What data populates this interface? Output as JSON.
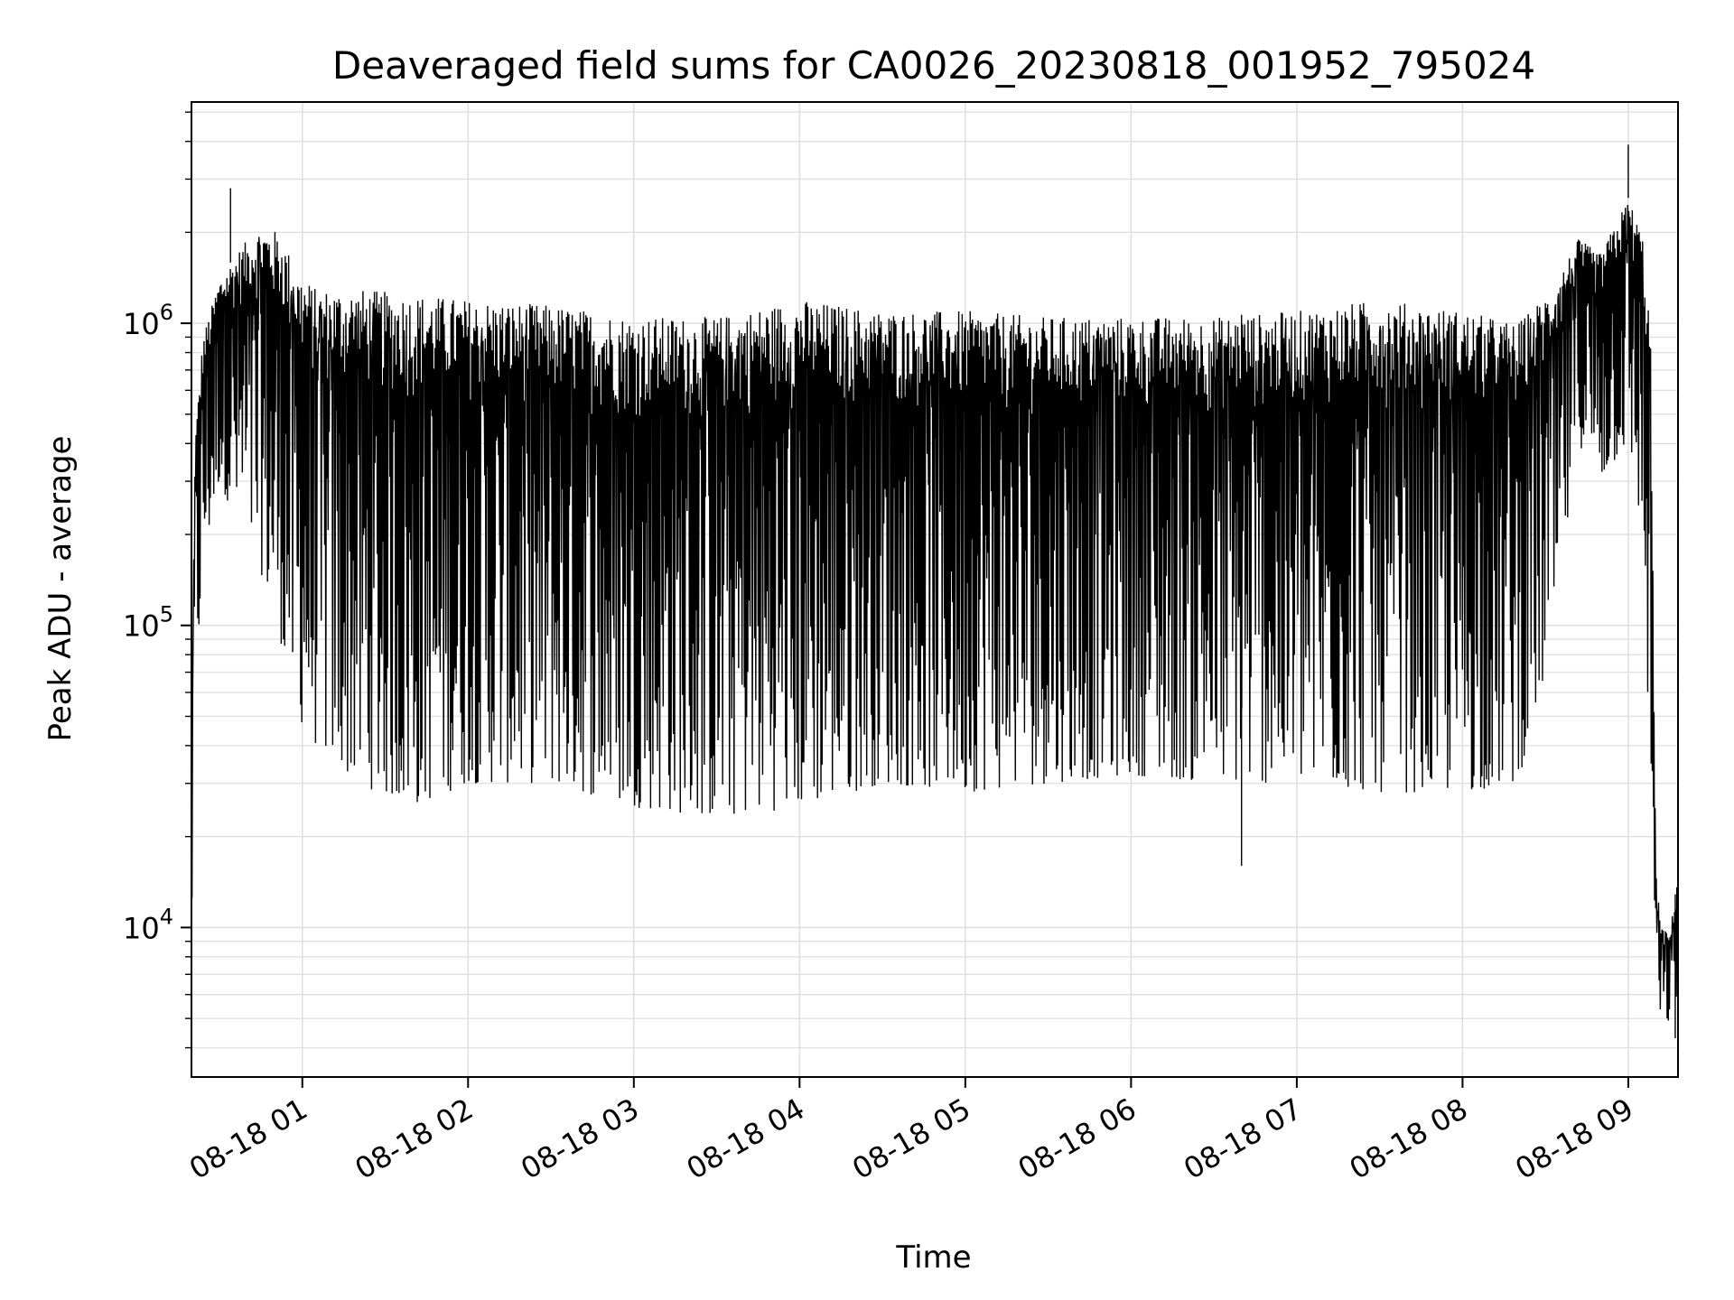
{
  "chart_data": {
    "type": "line",
    "title": "Deaveraged field sums for CA0026_20230818_001952_795024",
    "xlabel": "Time",
    "ylabel": "Peak ADU - average",
    "x_scale": "time",
    "y_scale": "log",
    "xlim": [
      "2023-08-18 00:19:52",
      "2023-08-18 09:18:00"
    ],
    "ylim": [
      3200,
      5400000
    ],
    "grid": true,
    "legend": "none",
    "line_color": "#000000",
    "x_ticks": [
      {
        "value": "2023-08-18 01:00",
        "label": "08-18 01"
      },
      {
        "value": "2023-08-18 02:00",
        "label": "08-18 02"
      },
      {
        "value": "2023-08-18 03:00",
        "label": "08-18 03"
      },
      {
        "value": "2023-08-18 04:00",
        "label": "08-18 04"
      },
      {
        "value": "2023-08-18 05:00",
        "label": "08-18 05"
      },
      {
        "value": "2023-08-18 06:00",
        "label": "08-18 06"
      },
      {
        "value": "2023-08-18 07:00",
        "label": "08-18 07"
      },
      {
        "value": "2023-08-18 08:00",
        "label": "08-18 08"
      },
      {
        "value": "2023-08-18 09:00",
        "label": "08-18 09"
      }
    ],
    "y_ticks": [
      {
        "value": 10000,
        "base": "10",
        "exp": "4"
      },
      {
        "value": 100000,
        "base": "10",
        "exp": "5"
      },
      {
        "value": 1000000,
        "base": "10",
        "exp": "6"
      }
    ],
    "series": [
      {
        "envelope": {
          "x": [
            "2023-08-18 00:19:52",
            "2023-08-18 00:21",
            "2023-08-18 00:24",
            "2023-08-18 00:30",
            "2023-08-18 00:38",
            "2023-08-18 00:45",
            "2023-08-18 00:52",
            "2023-08-18 00:58",
            "2023-08-18 01:05",
            "2023-08-18 01:20",
            "2023-08-18 01:40",
            "2023-08-18 02:00",
            "2023-08-18 02:30",
            "2023-08-18 03:00",
            "2023-08-18 03:30",
            "2023-08-18 04:00",
            "2023-08-18 04:30",
            "2023-08-18 05:00",
            "2023-08-18 05:30",
            "2023-08-18 06:00",
            "2023-08-18 06:30",
            "2023-08-18 07:00",
            "2023-08-18 07:30",
            "2023-08-18 08:00",
            "2023-08-18 08:20",
            "2023-08-18 08:32",
            "2023-08-18 08:42",
            "2023-08-18 08:50",
            "2023-08-18 09:00",
            "2023-08-18 09:05",
            "2023-08-18 09:08",
            "2023-08-18 09:10",
            "2023-08-18 09:12",
            "2023-08-18 09:15",
            "2023-08-18 09:18"
          ],
          "high": [
            20000,
            400000,
            900000,
            1400000,
            1800000,
            2100000,
            2000000,
            1500000,
            1300000,
            1300000,
            1250000,
            1200000,
            1150000,
            1050000,
            1050000,
            1200000,
            1100000,
            1100000,
            1050000,
            1050000,
            1050000,
            1100000,
            1200000,
            1100000,
            1000000,
            1300000,
            1900000,
            1700000,
            2600000,
            2000000,
            1000000,
            15000,
            10000,
            9500,
            15000
          ],
          "low": [
            7500,
            50000,
            150000,
            300000,
            200000,
            150000,
            90000,
            50000,
            40000,
            30000,
            25000,
            30000,
            30000,
            25000,
            23000,
            25000,
            30000,
            28000,
            30000,
            32000,
            30000,
            30000,
            28000,
            28000,
            30000,
            80000,
            400000,
            300000,
            400000,
            200000,
            30000,
            5500,
            5000,
            4800,
            6000
          ]
        },
        "notable_values": {
          "early_peak": {
            "x": "2023-08-18 00:34",
            "y": 2800000
          },
          "min_mid": {
            "x": "2023-08-18 06:40",
            "y": 16000
          },
          "late_peak": {
            "x": "2023-08-18 09:00",
            "y": 3900000
          },
          "end_min": {
            "x": "2023-08-18 09:17",
            "y": 4300
          }
        }
      }
    ]
  }
}
